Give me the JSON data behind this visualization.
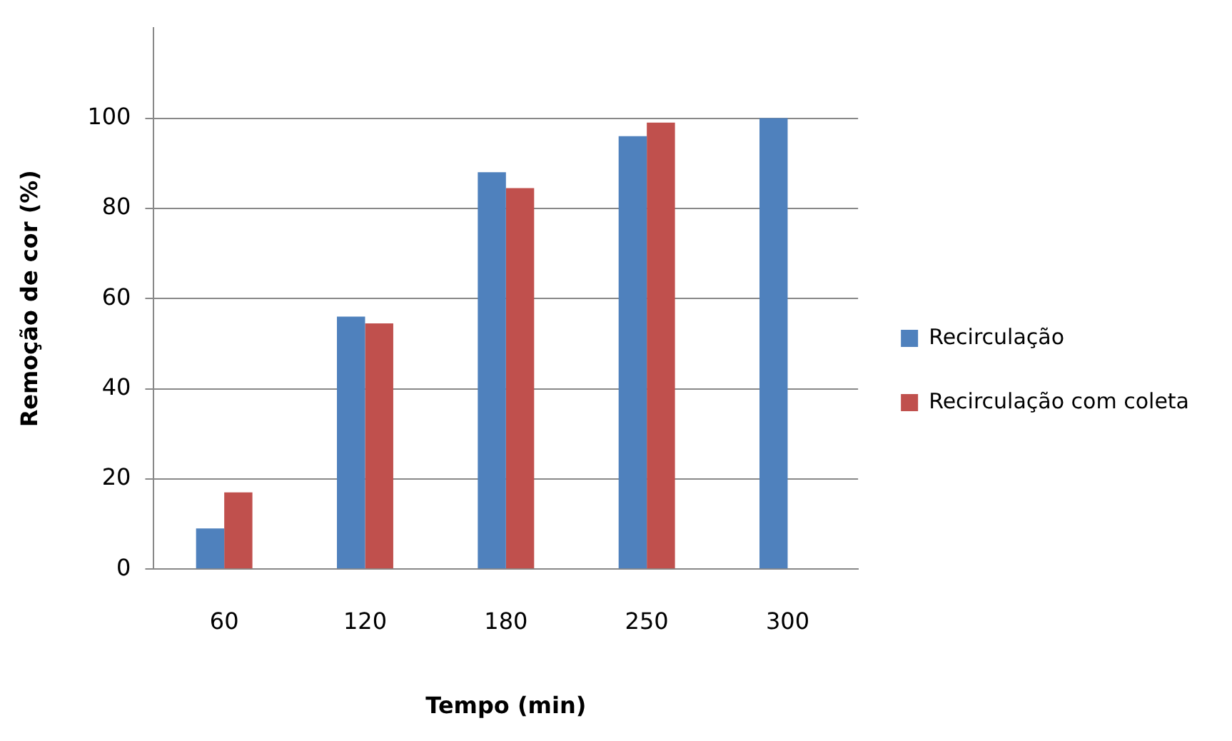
{
  "chart_data": {
    "type": "bar",
    "xlabel": "Tempo (min)",
    "ylabel": "Remoção de cor (%)",
    "categories": [
      "60",
      "120",
      "180",
      "250",
      "300"
    ],
    "series": [
      {
        "name": "Recirculação",
        "color": "#4f81bd",
        "values": [
          9,
          56,
          88,
          96,
          100
        ]
      },
      {
        "name": "Recirculação com coleta",
        "color": "#c0504d",
        "values": [
          17,
          54.5,
          84.5,
          99,
          null
        ]
      }
    ],
    "ylim": [
      0,
      120
    ],
    "yticks": [
      0,
      20,
      40,
      60,
      80,
      100
    ],
    "grid": "y",
    "legend": "right"
  }
}
